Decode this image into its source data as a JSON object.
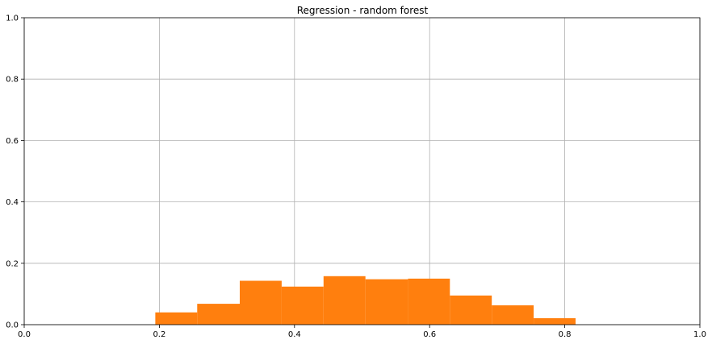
{
  "chart_data": {
    "type": "bar",
    "title": "Regression - random forest",
    "xlabel": "",
    "ylabel": "",
    "xlim": [
      0,
      1
    ],
    "ylim": [
      0,
      1
    ],
    "xticks": [
      "0.0",
      "0.2",
      "0.4",
      "0.6",
      "0.8",
      "1.0"
    ],
    "yticks": [
      "0.0",
      "0.2",
      "0.4",
      "0.6",
      "0.8",
      "1.0"
    ],
    "grid": true,
    "color": "#ff7f0e",
    "bins": [
      {
        "x0": 0.194,
        "x1": 0.256,
        "value": 0.04
      },
      {
        "x0": 0.256,
        "x1": 0.319,
        "value": 0.068
      },
      {
        "x0": 0.319,
        "x1": 0.381,
        "value": 0.143
      },
      {
        "x0": 0.381,
        "x1": 0.443,
        "value": 0.124
      },
      {
        "x0": 0.443,
        "x1": 0.505,
        "value": 0.158
      },
      {
        "x0": 0.505,
        "x1": 0.568,
        "value": 0.148
      },
      {
        "x0": 0.568,
        "x1": 0.63,
        "value": 0.15
      },
      {
        "x0": 0.63,
        "x1": 0.692,
        "value": 0.095
      },
      {
        "x0": 0.692,
        "x1": 0.754,
        "value": 0.063
      },
      {
        "x0": 0.754,
        "x1": 0.816,
        "value": 0.021
      }
    ]
  }
}
